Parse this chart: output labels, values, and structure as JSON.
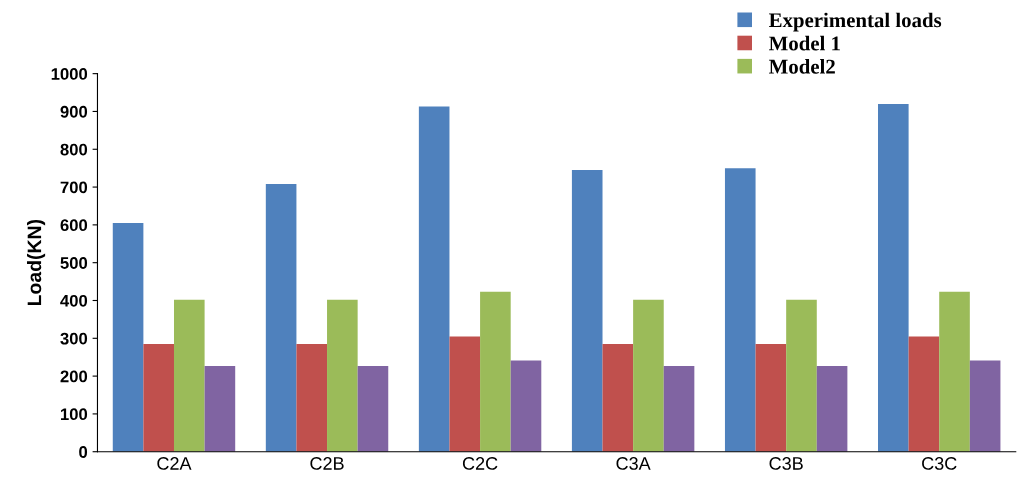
{
  "chart_data": {
    "type": "bar",
    "ylabel": "Load(KN)",
    "categories": [
      "C2A",
      "C2B",
      "C2C",
      "C3A",
      "C3B",
      "C3C"
    ],
    "series": [
      {
        "name": "Experimental loads",
        "color": "#4f81bd",
        "values": [
          605,
          708,
          913,
          745,
          750,
          920
        ]
      },
      {
        "name": "Model 1",
        "color": "#c0504d",
        "values": [
          285,
          285,
          305,
          285,
          285,
          305
        ]
      },
      {
        "name": "Model2",
        "color": "#9bbb59",
        "values": [
          402,
          402,
          423,
          402,
          402,
          423
        ]
      },
      {
        "color": "#8064a2",
        "values": [
          227,
          227,
          241,
          227,
          227,
          241
        ]
      }
    ],
    "ylim": [
      0,
      1000
    ],
    "yticks": [
      0,
      100,
      200,
      300,
      400,
      500,
      600,
      700,
      800,
      900,
      1000
    ],
    "grid": false,
    "legend": "top right"
  }
}
